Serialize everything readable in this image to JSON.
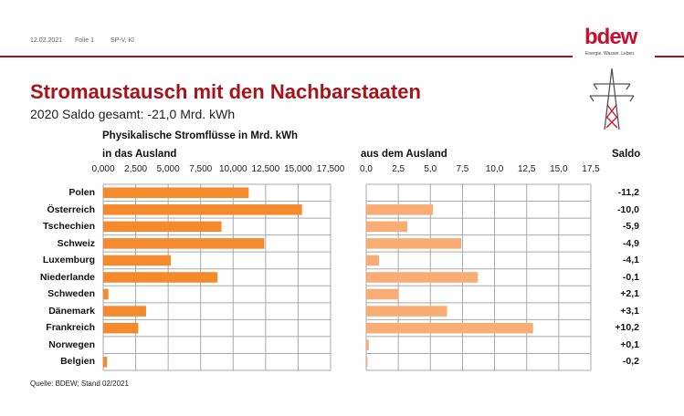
{
  "header": {
    "date": "12.02.2021",
    "slide": "Folie 1",
    "author": "SP-V, Kl",
    "logo": "bdew",
    "tagline": "Energie. Wasser. Leben."
  },
  "title": "Stromaustausch mit den Nachbarstaaten",
  "subtitle": "2020 Saldo gesamt: -21,0 Mrd. kWh",
  "icon": "power-pylon-icon",
  "source": "Quelle: BDEW; Stand 02/2021",
  "colors": {
    "brand": "#a8131a",
    "export": "#f58a2c",
    "import": "#f9ad74",
    "grid": "#a7a9ac"
  },
  "chart_data": [
    {
      "type": "bar",
      "orientation": "horizontal",
      "title": "Physikalische Stromflüsse in Mrd. kWh",
      "subtitle": "in das Ausland",
      "categories": [
        "Polen",
        "Österreich",
        "Tschechien",
        "Schweiz",
        "Luxemburg",
        "Niederlande",
        "Schweden",
        "Dänemark",
        "Frankreich",
        "Norwegen",
        "Belgien"
      ],
      "values": [
        11.2,
        15.3,
        9.1,
        12.4,
        5.2,
        8.8,
        0.4,
        3.3,
        2.7,
        0.0,
        0.3
      ],
      "xlim": [
        0,
        17.5
      ],
      "ticks": [
        "0,000",
        "2,500",
        "5,000",
        "7,500",
        "10,000",
        "12,500",
        "15,000",
        "17,500"
      ],
      "grid": true
    },
    {
      "type": "bar",
      "orientation": "horizontal",
      "subtitle": "aus dem Ausland",
      "categories": [
        "Polen",
        "Österreich",
        "Tschechien",
        "Schweiz",
        "Luxemburg",
        "Niederlande",
        "Schweden",
        "Dänemark",
        "Frankreich",
        "Norwegen",
        "Belgien"
      ],
      "values": [
        0.0,
        5.2,
        3.2,
        7.4,
        1.0,
        8.7,
        2.5,
        6.3,
        13.0,
        0.2,
        0.1
      ],
      "xlim": [
        0,
        17.5
      ],
      "ticks": [
        "0,0",
        "2,5",
        "5,0",
        "7,5",
        "10,0",
        "12,5",
        "15,0",
        "17,5"
      ],
      "grid": true
    },
    {
      "type": "table",
      "title": "Saldo",
      "values": [
        "-11,2",
        "-10,0",
        "-5,9",
        "-4,9",
        "-4,1",
        "-0,1",
        "+2,1",
        "+3,1",
        "+10,2",
        "+0,1",
        "-0,2"
      ]
    }
  ]
}
